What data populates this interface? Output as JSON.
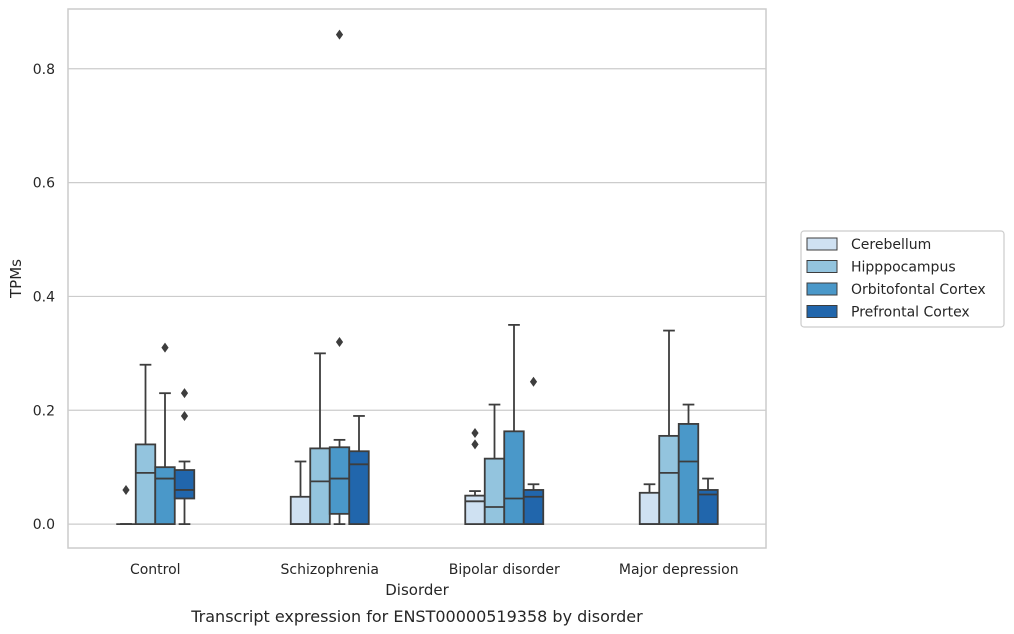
{
  "chart_data": {
    "type": "boxplot",
    "caption": "Transcript expression for ENST00000519358 by disorder",
    "xlabel": "Disorder",
    "ylabel": "TPMs",
    "ylim": [
      -0.042,
      0.905
    ],
    "yticks": [
      0.0,
      0.2,
      0.4,
      0.6,
      0.8
    ],
    "ytick_labels": [
      "0.0",
      "0.2",
      "0.4",
      "0.6",
      "0.8"
    ],
    "grid": "horizontal",
    "legend_position": "right",
    "categories": [
      "Control",
      "Schizophrenia",
      "Bipolar disorder",
      "Major depression"
    ],
    "series": [
      {
        "name": "Cerebellum",
        "color": "#cfe1f2",
        "boxes": [
          {
            "whisker_low": 0.0,
            "q1": 0.0,
            "median": 0.0,
            "q3": 0.0,
            "whisker_high": 0.0,
            "outliers": [
              0.06
            ]
          },
          {
            "whisker_low": 0.0,
            "q1": 0.0,
            "median": 0.0,
            "q3": 0.048,
            "whisker_high": 0.11,
            "outliers": []
          },
          {
            "whisker_low": 0.0,
            "q1": 0.0,
            "median": 0.04,
            "q3": 0.05,
            "whisker_high": 0.058,
            "outliers": [
              0.14,
              0.16
            ]
          },
          {
            "whisker_low": 0.0,
            "q1": 0.0,
            "median": 0.0,
            "q3": 0.055,
            "whisker_high": 0.07,
            "outliers": []
          }
        ]
      },
      {
        "name": "Hipppocampus",
        "color": "#93c4de",
        "boxes": [
          {
            "whisker_low": 0.0,
            "q1": 0.0,
            "median": 0.09,
            "q3": 0.14,
            "whisker_high": 0.28,
            "outliers": []
          },
          {
            "whisker_low": 0.0,
            "q1": 0.0,
            "median": 0.075,
            "q3": 0.133,
            "whisker_high": 0.3,
            "outliers": []
          },
          {
            "whisker_low": 0.0,
            "q1": 0.0,
            "median": 0.03,
            "q3": 0.115,
            "whisker_high": 0.21,
            "outliers": []
          },
          {
            "whisker_low": 0.0,
            "q1": 0.0,
            "median": 0.09,
            "q3": 0.155,
            "whisker_high": 0.34,
            "outliers": []
          }
        ]
      },
      {
        "name": "Orbitofontal Cortex",
        "color": "#4a98c9",
        "boxes": [
          {
            "whisker_low": 0.0,
            "q1": 0.0,
            "median": 0.08,
            "q3": 0.1,
            "whisker_high": 0.23,
            "outliers": [
              0.31
            ]
          },
          {
            "whisker_low": 0.0,
            "q1": 0.018,
            "median": 0.08,
            "q3": 0.135,
            "whisker_high": 0.148,
            "outliers": [
              0.32,
              0.86
            ]
          },
          {
            "whisker_low": 0.0,
            "q1": 0.0,
            "median": 0.045,
            "q3": 0.163,
            "whisker_high": 0.35,
            "outliers": []
          },
          {
            "whisker_low": 0.0,
            "q1": 0.0,
            "median": 0.11,
            "q3": 0.176,
            "whisker_high": 0.21,
            "outliers": []
          }
        ]
      },
      {
        "name": "Prefrontal Cortex",
        "color": "#2166ac",
        "boxes": [
          {
            "whisker_low": 0.0,
            "q1": 0.045,
            "median": 0.06,
            "q3": 0.095,
            "whisker_high": 0.11,
            "outliers": [
              0.19,
              0.23
            ]
          },
          {
            "whisker_low": 0.0,
            "q1": 0.0,
            "median": 0.105,
            "q3": 0.128,
            "whisker_high": 0.19,
            "outliers": []
          },
          {
            "whisker_low": 0.0,
            "q1": 0.0,
            "median": 0.048,
            "q3": 0.06,
            "whisker_high": 0.07,
            "outliers": [
              0.25
            ]
          },
          {
            "whisker_low": 0.0,
            "q1": 0.0,
            "median": 0.052,
            "q3": 0.06,
            "whisker_high": 0.08,
            "outliers": []
          }
        ]
      }
    ]
  }
}
